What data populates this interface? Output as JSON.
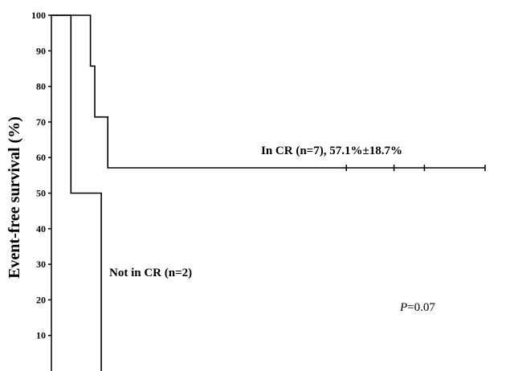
{
  "chart_data": {
    "type": "line",
    "ylabel": "Event-free survival (%)",
    "ylim": [
      0,
      100
    ],
    "y_ticks": [
      "100",
      "90",
      "80",
      "70",
      "60",
      "50",
      "40",
      "30",
      "20",
      "10"
    ],
    "xlim": [
      0,
      100
    ],
    "series": [
      {
        "key": "in_cr",
        "color": "#000000",
        "steps": [
          [
            0,
            100
          ],
          [
            9,
            100
          ],
          [
            9,
            85.7
          ],
          [
            10,
            85.7
          ],
          [
            10,
            71.4
          ],
          [
            13,
            71.4
          ],
          [
            13,
            57.1
          ],
          [
            100,
            57.1
          ]
        ],
        "censored": [
          68,
          79,
          86,
          100
        ]
      },
      {
        "key": "not_cr",
        "color": "#000000",
        "steps": [
          [
            0,
            100
          ],
          [
            4.5,
            100
          ],
          [
            4.5,
            50
          ],
          [
            11.5,
            50
          ],
          [
            11.5,
            0
          ]
        ],
        "censored": []
      }
    ],
    "annotations": {
      "in_cr": "In CR (n=7), 57.1%±18.7%",
      "not_cr": "Not in CR (n=2)",
      "p_italic": "P",
      "p_value": "=0.07"
    }
  }
}
